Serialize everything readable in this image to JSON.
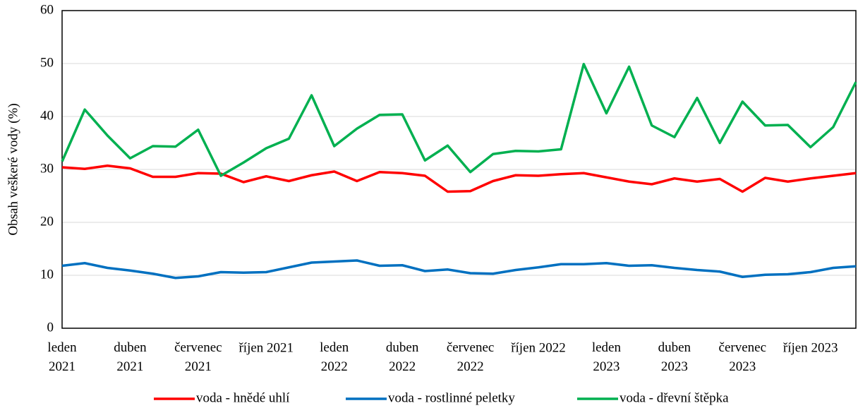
{
  "chart_data": {
    "type": "line",
    "y_label": "Obsah veškeré vody (%)",
    "categories": [
      "leden\n2021",
      null,
      null,
      "duben\n2021",
      null,
      null,
      "červenec\n2021",
      null,
      null,
      "říjen 2021",
      null,
      null,
      "leden\n2022",
      null,
      null,
      "duben\n2022",
      null,
      null,
      "červenec\n2022",
      null,
      null,
      "říjen 2022",
      null,
      null,
      "leden\n2023",
      null,
      null,
      "duben\n2023",
      null,
      null,
      "červenec\n2023",
      null,
      null,
      "říjen 2023",
      null,
      null
    ],
    "series": [
      {
        "name": "voda - hnědé uhlí",
        "color": "#ff0000",
        "values": [
          30.4,
          30.1,
          30.7,
          30.2,
          28.6,
          28.6,
          29.3,
          29.2,
          27.6,
          28.7,
          27.8,
          28.9,
          29.6,
          27.8,
          29.5,
          29.3,
          28.8,
          25.8,
          25.9,
          27.8,
          28.9,
          28.8,
          29.1,
          29.3,
          28.5,
          27.7,
          27.2,
          28.3,
          27.7,
          28.2,
          25.8,
          28.4,
          27.7,
          28.3,
          28.8,
          29.3
        ]
      },
      {
        "name": "voda - rostlinné peletky",
        "color": "#0070c0",
        "values": [
          11.8,
          12.3,
          11.4,
          10.9,
          10.3,
          9.5,
          9.8,
          10.6,
          10.5,
          10.6,
          11.5,
          12.4,
          12.6,
          12.8,
          11.8,
          11.9,
          10.8,
          11.1,
          10.4,
          10.3,
          11.0,
          11.5,
          12.1,
          12.1,
          12.3,
          11.8,
          11.9,
          11.4,
          11.0,
          10.7,
          9.7,
          10.1,
          10.2,
          10.6,
          11.4,
          11.7
        ]
      },
      {
        "name": "voda - dřevní štěpka",
        "color": "#00b050",
        "values": [
          31.5,
          41.3,
          36.4,
          32.1,
          34.4,
          34.3,
          37.5,
          28.8,
          31.3,
          34.0,
          35.8,
          44.0,
          34.4,
          37.7,
          40.3,
          40.4,
          31.7,
          34.5,
          29.5,
          32.9,
          33.5,
          33.4,
          33.8,
          49.9,
          40.6,
          49.4,
          38.3,
          36.1,
          43.5,
          35.0,
          42.8,
          38.3,
          38.4,
          34.2,
          38.0,
          46.5
        ]
      }
    ],
    "ylim": [
      0,
      60
    ],
    "yticks": [
      0,
      10,
      20,
      30,
      40,
      50,
      60
    ],
    "grid": true,
    "legend": "bottom"
  }
}
